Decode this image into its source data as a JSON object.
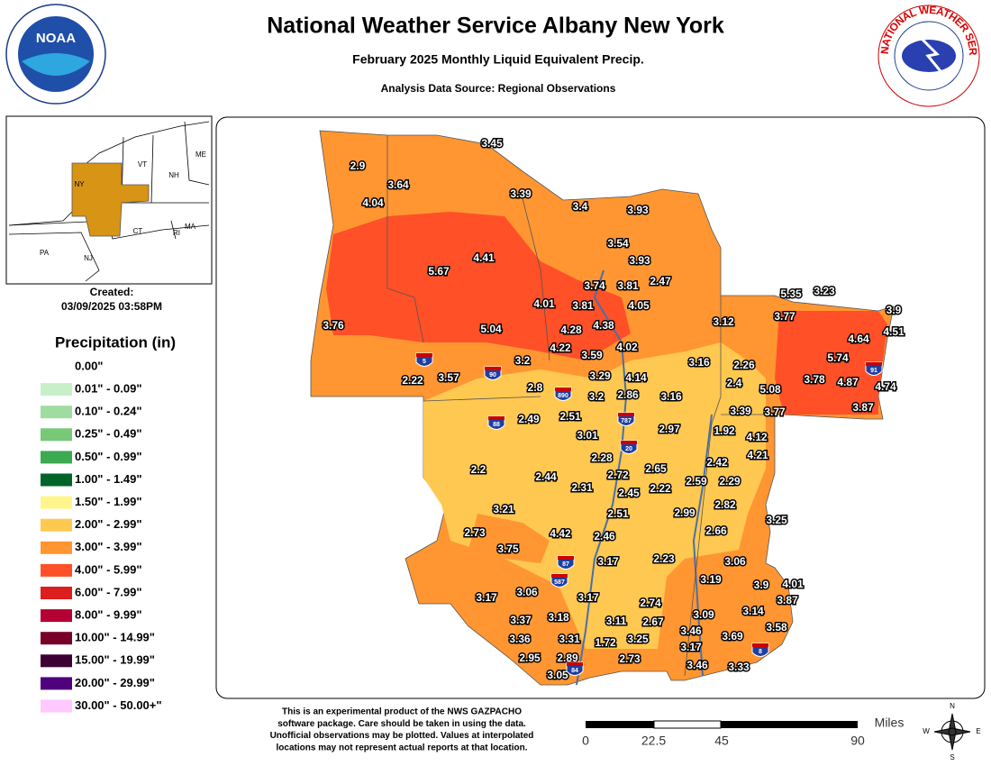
{
  "header": {
    "title": "National Weather Service Albany New York",
    "subtitle": "February 2025 Monthly Liquid Equivalent Precip.",
    "source": "Analysis Data Source: Regional Observations"
  },
  "logos": {
    "noaa": "NOAA",
    "nws": "NATIONAL WEATHER SERVICE"
  },
  "inset": {
    "labels": [
      "ME",
      "VT",
      "NH",
      "NY",
      "MA",
      "CT",
      "RI",
      "PA",
      "NJ"
    ]
  },
  "created": {
    "label": "Created:",
    "date": "03/09/2025 03:58PM"
  },
  "legend": {
    "title": "Precipitation (in)",
    "items": [
      {
        "label": "0.00\"",
        "color": "#ffffff"
      },
      {
        "label": "0.01\" - 0.09\"",
        "color": "#c8f0c8"
      },
      {
        "label": "0.10\" - 0.24\"",
        "color": "#a0dca0"
      },
      {
        "label": "0.25\" - 0.49\"",
        "color": "#78c878"
      },
      {
        "label": "0.50\" - 0.99\"",
        "color": "#3caa50"
      },
      {
        "label": "1.00\" - 1.49\"",
        "color": "#006428"
      },
      {
        "label": "1.50\" - 1.99\"",
        "color": "#fff58c"
      },
      {
        "label": "2.00\" - 2.99\"",
        "color": "#ffc850"
      },
      {
        "label": "3.00\" - 3.99\"",
        "color": "#ff9632"
      },
      {
        "label": "4.00\" - 5.99\"",
        "color": "#ff5028"
      },
      {
        "label": "6.00\" - 7.99\"",
        "color": "#dc1e1e"
      },
      {
        "label": "8.00\" - 9.99\"",
        "color": "#b40032"
      },
      {
        "label": "10.00\" - 14.99\"",
        "color": "#780028"
      },
      {
        "label": "15.00\" - 19.99\"",
        "color": "#3c0032"
      },
      {
        "label": "20.00\" - 29.99\"",
        "color": "#50007e"
      },
      {
        "label": "30.00\" - 50.00+\"",
        "color": "#ffc8ff"
      }
    ]
  },
  "map": {
    "stations": [
      3.45,
      2.9,
      3.64,
      3.39,
      4.04,
      3.4,
      3.93,
      3.54,
      5.67,
      4.41,
      3.93,
      2.47,
      3.74,
      3.81,
      4.01,
      3.81,
      4.05,
      4.28,
      4.38,
      3.12,
      5.35,
      3.23,
      3.77,
      3.9,
      4.51,
      4.64,
      5.74,
      3.76,
      5.04,
      4.22,
      3.59,
      4.02,
      3.2,
      3.16,
      2.26,
      3.57,
      2.22,
      3.29,
      4.14,
      2.4,
      5.08,
      3.78,
      4.87,
      4.74,
      2.8,
      3.2,
      2.86,
      3.16,
      3.39,
      3.77,
      3.87,
      2.49,
      2.51,
      2.97,
      1.92,
      4.12,
      3.01,
      4.21,
      2.28,
      2.42,
      2.2,
      2.44,
      2.72,
      2.65,
      2.31,
      2.59,
      2.29,
      2.45,
      2.22,
      2.82,
      3.21,
      2.99,
      2.51,
      3.25,
      2.66,
      2.73,
      4.42,
      2.46,
      3.75,
      3.17,
      2.23,
      3.06,
      3.19,
      3.9,
      4.01,
      3.06,
      3.17,
      3.87,
      3.17,
      2.74,
      3.14,
      3.37,
      3.18,
      3.11,
      2.67,
      3.09,
      3.58,
      3.46,
      3.36,
      3.31,
      1.72,
      3.25,
      3.69,
      3.17,
      2.95,
      2.89,
      2.73,
      3.46,
      3.33,
      3.05
    ],
    "interstates": [
      "5",
      "90",
      "890",
      "88",
      "787",
      "20",
      "87",
      "587",
      "84",
      "91",
      "8"
    ]
  },
  "disclaimer": [
    "This is an experimental product of the NWS GAZPACHO",
    "software package. Care should be taken in using the data.",
    "Unofficial observations may be plotted. Values at interpolated",
    "locations may not represent actual reports at that location."
  ],
  "scale": {
    "ticks": [
      0,
      22.5,
      45,
      90
    ],
    "unit": "Miles"
  },
  "compass": [
    "N",
    "E",
    "S",
    "W"
  ]
}
